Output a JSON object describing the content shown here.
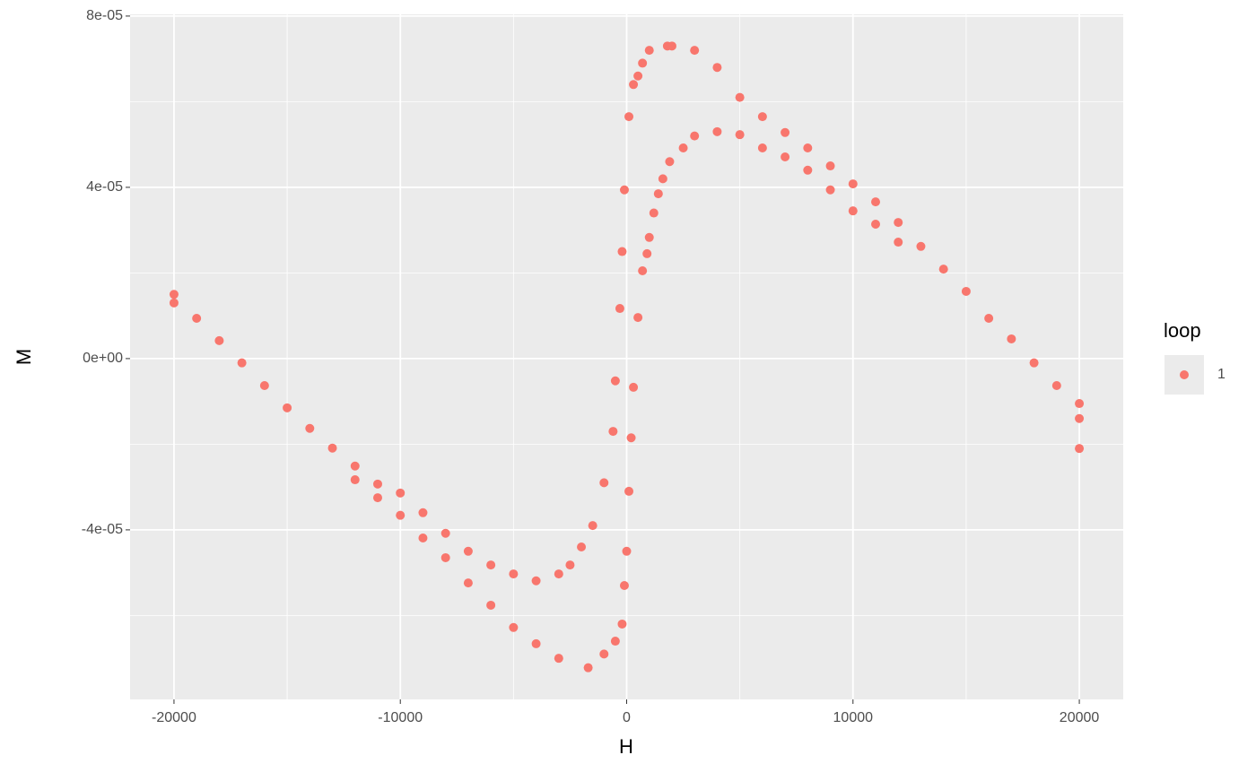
{
  "chart_data": {
    "type": "scatter",
    "x_label": "H",
    "y_label": "M",
    "legend_title": "loop",
    "xlim": [
      -21940,
      21940
    ],
    "ylim": [
      -7.96e-05,
      8.04e-05
    ],
    "xticks": [
      -20000,
      -10000,
      0,
      10000,
      20000
    ],
    "yticks": [
      {
        "value": -4e-05,
        "label": "-4e-05"
      },
      {
        "value": 0,
        "label": "0e+00"
      },
      {
        "value": 4e-05,
        "label": "4e-05"
      },
      {
        "value": 8e-05,
        "label": "8e-05"
      }
    ],
    "grid": true,
    "series": [
      {
        "name": "1",
        "color": "#f8766d",
        "x": [
          20000,
          19000,
          18000,
          17000,
          16000,
          15000,
          14000,
          13000,
          12000,
          11000,
          10000,
          9000,
          8000,
          7000,
          6000,
          5000,
          4000,
          3000,
          2000,
          1800,
          1000,
          700,
          500,
          300,
          100,
          -100,
          -200,
          -300,
          -500,
          -600,
          -1000,
          -1500,
          -2000,
          -2500,
          -3000,
          -4000,
          -5000,
          -6000,
          -7000,
          -8000,
          -9000,
          -10000,
          -11000,
          -12000,
          -13000,
          -14000,
          -15000,
          -16000,
          -17000,
          -18000,
          -19000,
          -20000,
          -20000,
          -12000,
          -11000,
          -10000,
          -9000,
          -8000,
          -7000,
          -6000,
          -5000,
          -4000,
          -3000,
          -1700,
          -1000,
          -500,
          -200,
          -100,
          0,
          100,
          200,
          300,
          500,
          700,
          900,
          1000,
          1200,
          1400,
          1600,
          1900,
          2500,
          3000,
          4000,
          5000,
          6000,
          7000,
          8000,
          9000,
          10000,
          11000,
          12000,
          20000,
          20000
        ],
        "values": [
          -1.05e-05,
          -6.3e-06,
          -1e-06,
          4.6e-06,
          9.4e-06,
          1.57e-05,
          2.09e-05,
          2.62e-05,
          3.18e-05,
          3.66e-05,
          4.08e-05,
          4.5e-05,
          4.92e-05,
          5.28e-05,
          5.65e-05,
          6.1e-05,
          6.8e-05,
          7.2e-05,
          7.3e-05,
          7.3e-05,
          7.2e-05,
          6.9e-05,
          6.6e-05,
          6.4e-05,
          5.65e-05,
          3.94e-05,
          2.5e-05,
          1.17e-05,
          -5.2e-06,
          -1.7e-05,
          -2.9e-05,
          -3.9e-05,
          -4.4e-05,
          -4.82e-05,
          -5.03e-05,
          -5.19e-05,
          -5.03e-05,
          -4.82e-05,
          -4.5e-05,
          -4.08e-05,
          -3.6e-05,
          -3.14e-05,
          -2.93e-05,
          -2.51e-05,
          -2.09e-05,
          -1.63e-05,
          -1.15e-05,
          -6.3e-06,
          -1e-06,
          4.2e-06,
          9.4e-06,
          1.3e-05,
          1.5e-05,
          -2.83e-05,
          -3.25e-05,
          -3.66e-05,
          -4.19e-05,
          -4.65e-05,
          -5.24e-05,
          -5.76e-05,
          -6.28e-05,
          -6.66e-05,
          -7e-05,
          -7.22e-05,
          -6.9e-05,
          -6.6e-05,
          -6.2e-05,
          -5.3e-05,
          -4.5e-05,
          -3.1e-05,
          -1.85e-05,
          -6.7e-06,
          9.6e-06,
          2.05e-05,
          2.45e-05,
          2.83e-05,
          3.4e-05,
          3.85e-05,
          4.2e-05,
          4.6e-05,
          4.92e-05,
          5.2e-05,
          5.3e-05,
          5.23e-05,
          4.92e-05,
          4.71e-05,
          4.4e-05,
          3.94e-05,
          3.45e-05,
          3.14e-05,
          2.72e-05,
          -2.1e-05,
          -1.4e-05
        ]
      }
    ]
  }
}
